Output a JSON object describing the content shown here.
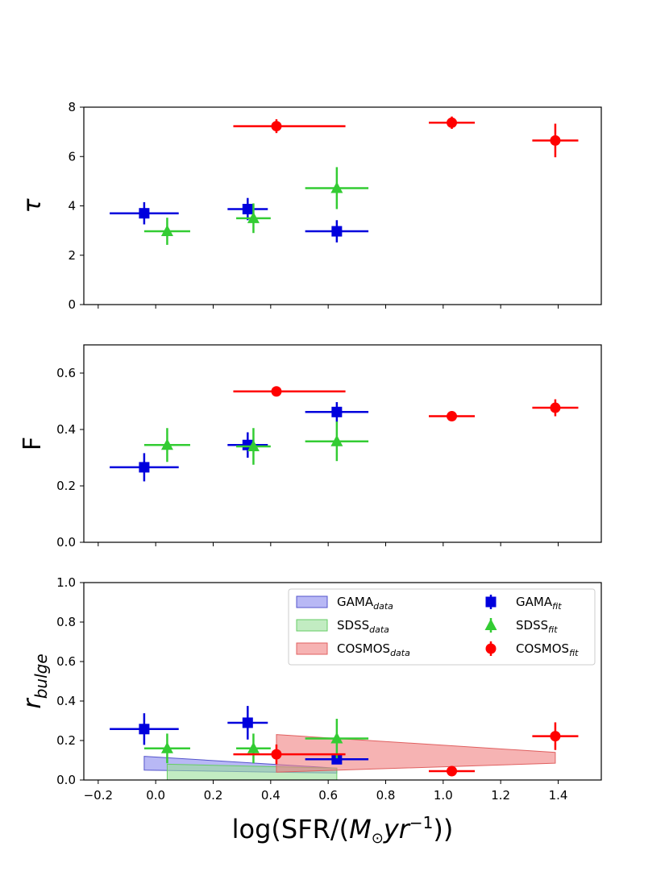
{
  "chart_data": [
    {
      "type": "scatter",
      "id": "tau",
      "ylabel": "τ",
      "ylim": [
        0,
        8
      ],
      "yticks": [
        0,
        2,
        4,
        6,
        8
      ],
      "xlim": [
        -0.25,
        1.55
      ],
      "series": [
        {
          "key": "gama_fit",
          "marker": "square",
          "color": "#0000dd",
          "points": [
            {
              "x": -0.04,
              "y": 3.7,
              "xerr": 0.12,
              "yerr": 0.45
            },
            {
              "x": 0.32,
              "y": 3.87,
              "xerr": 0.07,
              "yerr": 0.45
            },
            {
              "x": 0.63,
              "y": 2.97,
              "xerr": 0.11,
              "yerr": 0.45
            }
          ]
        },
        {
          "key": "sdss_fit",
          "marker": "triangle",
          "color": "#33cc33",
          "points": [
            {
              "x": 0.04,
              "y": 2.97,
              "xerr": 0.08,
              "yerr": 0.55
            },
            {
              "x": 0.34,
              "y": 3.5,
              "xerr": 0.06,
              "yerr": 0.6
            },
            {
              "x": 0.63,
              "y": 4.72,
              "xerr": 0.11,
              "yerr": 0.85
            }
          ]
        },
        {
          "key": "cosmos_fit",
          "marker": "circle",
          "color": "#ff0000",
          "points": [
            {
              "x": 0.42,
              "y": 7.23,
              "xerr_low": 0.15,
              "xerr_high": 0.24,
              "yerr": 0.28
            },
            {
              "x": 1.03,
              "y": 7.37,
              "xerr": 0.08,
              "yerr": 0.25
            },
            {
              "x": 1.39,
              "y": 6.65,
              "xerr": 0.08,
              "yerr": 0.68
            }
          ]
        }
      ]
    },
    {
      "type": "scatter",
      "id": "F",
      "ylabel": "F",
      "ylim": [
        0,
        0.7
      ],
      "yticks": [
        0.0,
        0.2,
        0.4,
        0.6
      ],
      "xlim": [
        -0.25,
        1.55
      ],
      "series": [
        {
          "key": "gama_fit",
          "marker": "square",
          "color": "#0000dd",
          "points": [
            {
              "x": -0.04,
              "y": 0.266,
              "xerr": 0.12,
              "yerr": 0.05
            },
            {
              "x": 0.32,
              "y": 0.345,
              "xerr": 0.07,
              "yerr": 0.045
            },
            {
              "x": 0.63,
              "y": 0.462,
              "xerr": 0.11,
              "yerr": 0.035
            }
          ]
        },
        {
          "key": "sdss_fit",
          "marker": "triangle",
          "color": "#33cc33",
          "points": [
            {
              "x": 0.04,
              "y": 0.345,
              "xerr": 0.08,
              "yerr": 0.06
            },
            {
              "x": 0.34,
              "y": 0.34,
              "xerr": 0.06,
              "yerr": 0.065
            },
            {
              "x": 0.63,
              "y": 0.358,
              "xerr": 0.11,
              "yerr": 0.07
            }
          ]
        },
        {
          "key": "cosmos_fit",
          "marker": "circle",
          "color": "#ff0000",
          "points": [
            {
              "x": 0.42,
              "y": 0.535,
              "xerr_low": 0.15,
              "xerr_high": 0.24,
              "yerr": 0.005
            },
            {
              "x": 1.03,
              "y": 0.447,
              "xerr": 0.08,
              "yerr": 0.005
            },
            {
              "x": 1.39,
              "y": 0.477,
              "xerr": 0.08,
              "yerr": 0.03
            }
          ]
        }
      ]
    },
    {
      "type": "scatter",
      "id": "rbulge",
      "ylabel": "r",
      "ylabel_sub": "bulge",
      "xlabel": "log(SFR/(M⊙yr−1))",
      "ylim": [
        0,
        1.0
      ],
      "yticks": [
        0.0,
        0.2,
        0.4,
        0.6,
        0.8,
        1.0
      ],
      "xlim": [
        -0.25,
        1.55
      ],
      "xticks": [
        -0.2,
        0.0,
        0.2,
        0.4,
        0.6,
        0.8,
        1.0,
        1.2,
        1.4
      ],
      "xtick_labels": [
        "−0.2",
        "0.0",
        "0.2",
        "0.4",
        "0.6",
        "0.8",
        "1.0",
        "1.2",
        "1.4"
      ],
      "bands": [
        {
          "key": "gama_data",
          "color": "#8888ee",
          "edge": "#5555cc",
          "x": [
            -0.04,
            0.63
          ],
          "y_upper": [
            0.12,
            0.06
          ],
          "y_lower": [
            0.05,
            0.035
          ]
        },
        {
          "key": "sdss_data",
          "color": "#99e099",
          "edge": "#66cc66",
          "x": [
            0.04,
            0.63
          ],
          "y_upper": [
            0.08,
            0.06
          ],
          "y_lower": [
            0.0,
            0.0
          ]
        },
        {
          "key": "cosmos_data",
          "color": "#f08080",
          "edge": "#e06060",
          "x": [
            0.42,
            1.39
          ],
          "y_upper": [
            0.23,
            0.14
          ],
          "y_lower": [
            0.04,
            0.085
          ]
        }
      ],
      "series": [
        {
          "key": "gama_fit",
          "marker": "square",
          "color": "#0000dd",
          "points": [
            {
              "x": -0.04,
              "y": 0.258,
              "xerr": 0.12,
              "yerr": 0.08
            },
            {
              "x": 0.32,
              "y": 0.29,
              "xerr": 0.07,
              "yerr": 0.085
            },
            {
              "x": 0.63,
              "y": 0.105,
              "xerr": 0.11,
              "yerr": 0.02
            }
          ]
        },
        {
          "key": "sdss_fit",
          "marker": "triangle",
          "color": "#33cc33",
          "points": [
            {
              "x": 0.04,
              "y": 0.16,
              "xerr": 0.08,
              "yerr": 0.075
            },
            {
              "x": 0.34,
              "y": 0.16,
              "xerr": 0.06,
              "yerr": 0.075
            },
            {
              "x": 0.63,
              "y": 0.21,
              "xerr": 0.11,
              "yerr": 0.1
            }
          ]
        },
        {
          "key": "cosmos_fit",
          "marker": "circle",
          "color": "#ff0000",
          "points": [
            {
              "x": 0.42,
              "y": 0.13,
              "xerr_low": 0.15,
              "xerr_high": 0.24,
              "yerr": 0.05
            },
            {
              "x": 1.03,
              "y": 0.045,
              "xerr": 0.08,
              "yerr": 0.005
            },
            {
              "x": 1.39,
              "y": 0.222,
              "xerr": 0.08,
              "yerr": 0.07
            }
          ]
        }
      ],
      "legend": {
        "placement": "upper-right",
        "entries": [
          {
            "key": "gama_data",
            "kind": "band",
            "name": "GAMA",
            "sub": "data"
          },
          {
            "key": "gama_fit",
            "kind": "marker",
            "name": "GAMA",
            "sub": "fit"
          },
          {
            "key": "sdss_data",
            "kind": "band",
            "name": "SDSS",
            "sub": "data"
          },
          {
            "key": "sdss_fit",
            "kind": "marker",
            "name": "SDSS",
            "sub": "fit"
          },
          {
            "key": "cosmos_data",
            "kind": "band",
            "name": "COSMOS",
            "sub": "data"
          },
          {
            "key": "cosmos_fit",
            "kind": "marker",
            "name": "COSMOS",
            "sub": "fit"
          }
        ]
      }
    }
  ]
}
